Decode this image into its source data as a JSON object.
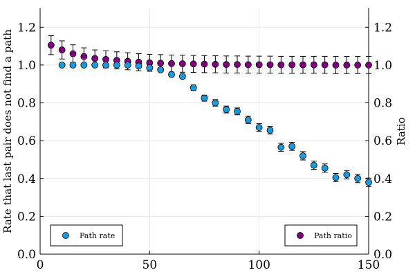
{
  "chart_data": {
    "type": "scatter",
    "xlim": [
      0,
      150
    ],
    "ylim_left": [
      0.0,
      1.3
    ],
    "ylim_right": [
      0.0,
      1.3
    ],
    "x_ticks": [
      0,
      50,
      100,
      150
    ],
    "x_tick_labels": [
      "0",
      "50",
      "100",
      "150"
    ],
    "y_ticks": [
      0.0,
      0.2,
      0.4,
      0.6,
      0.8,
      1.0,
      1.2
    ],
    "y_tick_labels": [
      "0.0",
      "0.2",
      "0.4",
      "0.6",
      "0.8",
      "1.0",
      "1.2"
    ],
    "ylabel_left": "Rate that last pair does not find a path",
    "ylabel_right": "Ratio",
    "xlabel": "",
    "grid": true,
    "series": [
      {
        "name": "Path rate",
        "color": "#179BDC",
        "axis": "left",
        "legend_position": "bottom-left",
        "x": [
          10,
          15,
          20,
          25,
          30,
          35,
          40,
          45,
          50,
          55,
          60,
          65,
          70,
          75,
          80,
          85,
          90,
          95,
          100,
          105,
          110,
          115,
          120,
          125,
          130,
          135,
          140,
          145,
          150
        ],
        "y": [
          1.0,
          1.0,
          1.0,
          1.0,
          1.0,
          1.0,
          1.0,
          0.995,
          0.985,
          0.975,
          0.95,
          0.94,
          0.88,
          0.825,
          0.8,
          0.765,
          0.755,
          0.71,
          0.67,
          0.655,
          0.565,
          0.57,
          0.52,
          0.47,
          0.455,
          0.405,
          0.42,
          0.4,
          0.38
        ],
        "err": [
          0.004,
          0.004,
          0.004,
          0.004,
          0.004,
          0.004,
          0.006,
          0.008,
          0.01,
          0.01,
          0.012,
          0.012,
          0.014,
          0.016,
          0.017,
          0.018,
          0.018,
          0.019,
          0.02,
          0.02,
          0.021,
          0.021,
          0.022,
          0.022,
          0.022,
          0.022,
          0.022,
          0.022,
          0.022
        ]
      },
      {
        "name": "Path ratio",
        "color": "#800080",
        "axis": "right",
        "legend_position": "bottom-right",
        "x": [
          5,
          10,
          15,
          20,
          25,
          30,
          35,
          40,
          45,
          50,
          55,
          60,
          65,
          70,
          75,
          80,
          85,
          90,
          95,
          100,
          105,
          110,
          115,
          120,
          125,
          130,
          135,
          140,
          145,
          150
        ],
        "y": [
          1.105,
          1.08,
          1.06,
          1.045,
          1.035,
          1.03,
          1.025,
          1.02,
          1.015,
          1.012,
          1.01,
          1.008,
          1.007,
          1.006,
          1.005,
          1.004,
          1.003,
          1.003,
          1.002,
          1.002,
          1.002,
          1.001,
          1.001,
          1.001,
          1.001,
          1.001,
          1.0,
          1.0,
          1.0,
          1.0
        ],
        "err": [
          0.05,
          0.048,
          0.047,
          0.046,
          0.045,
          0.045,
          0.045,
          0.045,
          0.045,
          0.045,
          0.045,
          0.045,
          0.045,
          0.045,
          0.045,
          0.045,
          0.045,
          0.045,
          0.045,
          0.045,
          0.045,
          0.045,
          0.045,
          0.045,
          0.045,
          0.045,
          0.045,
          0.045,
          0.045,
          0.045
        ]
      }
    ]
  }
}
